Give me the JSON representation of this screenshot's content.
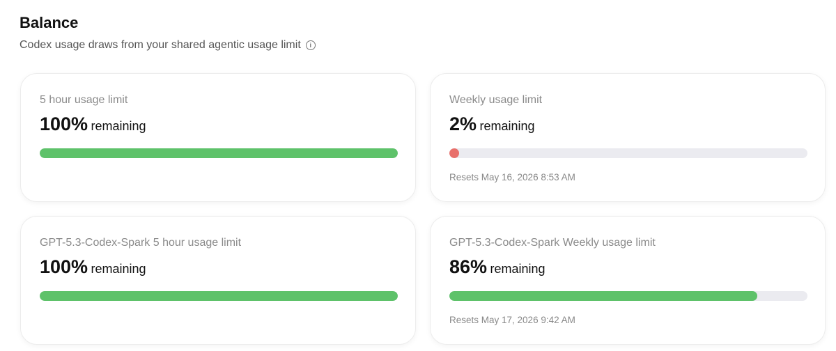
{
  "header": {
    "title": "Balance",
    "subtitle": "Codex usage draws from your shared agentic usage limit"
  },
  "cards": [
    {
      "title": "5 hour usage limit",
      "value": 100,
      "value_label": "100%",
      "suffix": "remaining",
      "color": "#5ec26a"
    },
    {
      "title": "Weekly usage limit",
      "value": 2,
      "value_label": "2%",
      "suffix": "remaining",
      "color": "#e8706b",
      "resets": "Resets May 16, 2026 8:53 AM"
    },
    {
      "title": "GPT-5.3-Codex-Spark 5 hour usage limit",
      "value": 100,
      "value_label": "100%",
      "suffix": "remaining",
      "color": "#5ec26a"
    },
    {
      "title": "GPT-5.3-Codex-Spark Weekly usage limit",
      "value": 86,
      "value_label": "86%",
      "suffix": "remaining",
      "color": "#5ec26a",
      "resets": "Resets May 17, 2026 9:42 AM"
    }
  ]
}
